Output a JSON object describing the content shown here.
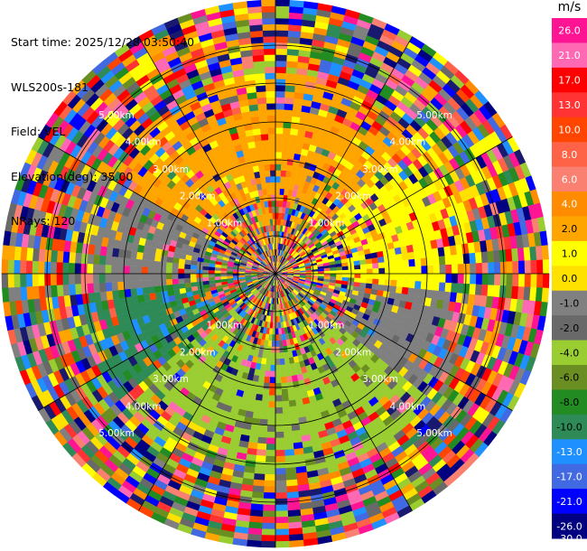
{
  "info": {
    "start_time": "Start time: 2025/12/28 03:50:40",
    "radar": "WLS200s-181",
    "field": "Field: VEL",
    "elevation": "Elevation(deg): 35.00",
    "nrays": "NRays: 120"
  },
  "chart_data": {
    "type": "heatmap",
    "projection": "polar-ppi",
    "field": "VEL",
    "units": "m/s",
    "n_rays": 120,
    "elevation_deg": 35.0,
    "grid": true,
    "range_ring_labels": [
      "1.00km",
      "2.00km",
      "3.00km",
      "4.00km",
      "5.00km"
    ],
    "colorbar": {
      "title": "m/s",
      "tick_labels": [
        "26.0",
        "21.0",
        "17.0",
        "13.0",
        "10.0",
        "8.0",
        "6.0",
        "4.0",
        "2.0",
        "1.0",
        "0.0",
        "-1.0",
        "-2.0",
        "-4.0",
        "-6.0",
        "-8.0",
        "-10.0",
        "-13.0",
        "-17.0",
        "-21.0",
        "-26.0",
        "-30.0"
      ],
      "colors": [
        "#ff1493",
        "#ff69b4",
        "#ff0000",
        "#ff3333",
        "#ff4500",
        "#ff6347",
        "#fa8072",
        "#ff8c00",
        "#ffa500",
        "#ffff00",
        "#ffe100",
        "#808080",
        "#696969",
        "#9acd32",
        "#6b8e23",
        "#228b22",
        "#2e8b57",
        "#1e90ff",
        "#4169e1",
        "#0000ff",
        "#000080",
        "#191970"
      ]
    },
    "pattern": {
      "sector_colors": [
        "#ffa500",
        "#ffff00",
        "#808080",
        "#9acd32",
        "#2e8b57",
        "#808080",
        "#ffa500"
      ],
      "sector_azimuths_deg": [
        330,
        45,
        95,
        130,
        230,
        265,
        300
      ]
    }
  }
}
